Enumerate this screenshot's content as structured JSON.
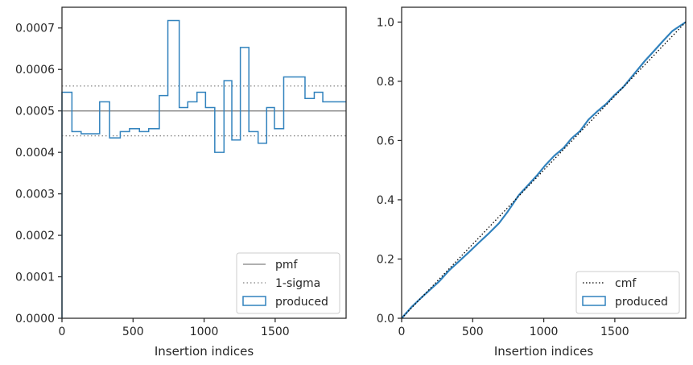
{
  "chart_data": [
    {
      "type": "step",
      "xlabel": "Insertion indices",
      "xlim": [
        0,
        1999
      ],
      "ylim": [
        0,
        0.00075
      ],
      "xticks": [
        0,
        500,
        1000,
        1500
      ],
      "yticks": [
        0,
        0.0001,
        0.0002,
        0.0003,
        0.0004,
        0.0005,
        0.0006,
        0.0007
      ],
      "xtick_labels": [
        "0",
        "500",
        "1000",
        "1500"
      ],
      "ytick_labels": [
        "0.0000",
        "0.0001",
        "0.0002",
        "0.0003",
        "0.0004",
        "0.0005",
        "0.0006",
        "0.0007"
      ],
      "legend_position": "lower-right",
      "lines": [
        {
          "name": "pmf",
          "y": 0.0005,
          "style": "solid",
          "color": "#808080"
        },
        {
          "name": "1-sigma",
          "y": [
            0.00044,
            0.00056
          ],
          "style": "dotted",
          "color": "#808080"
        }
      ],
      "series": [
        {
          "name": "produced",
          "color": "#3182bd",
          "bin_edges": [
            0,
            70,
            135,
            265,
            335,
            410,
            475,
            545,
            610,
            685,
            745,
            825,
            885,
            950,
            1010,
            1075,
            1140,
            1195,
            1255,
            1315,
            1380,
            1440,
            1495,
            1560,
            1710,
            1775,
            1835,
            1905,
            1999
          ],
          "values": [
            0.000545,
            0.00045,
            0.000445,
            0.000522,
            0.000435,
            0.00045,
            0.000457,
            0.00045,
            0.000457,
            0.000537,
            0.000718,
            0.000508,
            0.000522,
            0.000545,
            0.000508,
            0.0004,
            0.000573,
            0.00043,
            0.000653,
            0.00045,
            0.000422,
            0.000508,
            0.000457,
            0.000582,
            0.00053,
            0.000545,
            0.000522,
            0.000522
          ]
        }
      ]
    },
    {
      "type": "line",
      "xlabel": "Insertion indices",
      "xlim": [
        0,
        1999
      ],
      "ylim": [
        0,
        1.05
      ],
      "xticks": [
        0,
        500,
        1000,
        1500
      ],
      "yticks": [
        0,
        0.2,
        0.4,
        0.6,
        0.8,
        1.0
      ],
      "xtick_labels": [
        "0",
        "500",
        "1000",
        "1500"
      ],
      "ytick_labels": [
        "0.0",
        "0.2",
        "0.4",
        "0.6",
        "0.8",
        "1.0"
      ],
      "legend_position": "lower-right",
      "series": [
        {
          "name": "cmf",
          "style": "dotted",
          "color": "#000000",
          "x": [
            0,
            1999
          ],
          "y": [
            0,
            1.0
          ]
        },
        {
          "name": "produced",
          "style": "solid",
          "color": "#3182bd",
          "x": [
            0,
            70,
            135,
            265,
            335,
            410,
            475,
            545,
            610,
            685,
            745,
            825,
            885,
            950,
            1010,
            1075,
            1140,
            1195,
            1255,
            1315,
            1380,
            1440,
            1495,
            1560,
            1710,
            1775,
            1835,
            1905,
            1999
          ],
          "y": [
            0,
            0.038,
            0.068,
            0.125,
            0.162,
            0.195,
            0.224,
            0.256,
            0.285,
            0.321,
            0.359,
            0.416,
            0.447,
            0.481,
            0.516,
            0.549,
            0.575,
            0.607,
            0.632,
            0.671,
            0.7,
            0.724,
            0.752,
            0.781,
            0.868,
            0.902,
            0.934,
            0.97,
            1.0
          ]
        }
      ]
    }
  ]
}
